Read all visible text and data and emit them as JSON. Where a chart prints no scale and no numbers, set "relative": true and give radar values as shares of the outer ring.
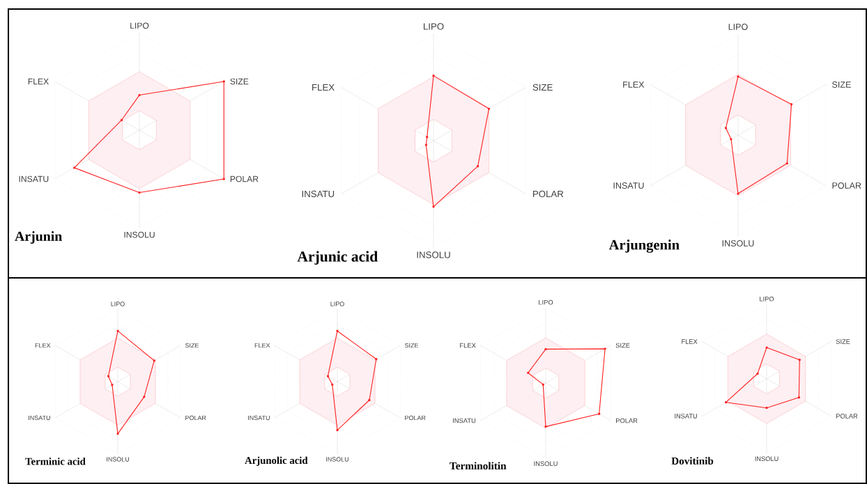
{
  "chart_data": [
    {
      "type": "radar",
      "title": "Arjunin",
      "categories": [
        "LIPO",
        "SIZE",
        "POLAR",
        "INSOLU",
        "INSATU",
        "FLEX"
      ],
      "relative": true,
      "grid": true,
      "series": [
        {
          "type": "area",
          "color": "#fdeff2",
          "values": [
            0.6,
            0.6,
            0.6,
            0.6,
            0.6,
            0.6
          ]
        },
        {
          "color": "#ff2020",
          "marker": "circle",
          "values": [
            0.36,
            1.0,
            1.0,
            0.64,
            0.77,
            0.21
          ]
        }
      ]
    },
    {
      "type": "radar",
      "title": "Arjunic acid",
      "categories": [
        "LIPO",
        "SIZE",
        "POLAR",
        "INSOLU",
        "INSATU",
        "FLEX"
      ],
      "relative": true,
      "grid": true,
      "series": [
        {
          "type": "area",
          "color": "#fdeff2",
          "values": [
            0.6,
            0.6,
            0.6,
            0.6,
            0.6,
            0.6
          ]
        },
        {
          "color": "#ff2020",
          "marker": "circle",
          "values": [
            0.61,
            0.6,
            0.48,
            0.62,
            0.08,
            0.07
          ]
        }
      ]
    },
    {
      "type": "radar",
      "title": "Arjungenin",
      "categories": [
        "LIPO",
        "SIZE",
        "POLAR",
        "INSOLU",
        "INSATU",
        "FLEX"
      ],
      "relative": true,
      "grid": true,
      "series": [
        {
          "type": "area",
          "color": "#fdeff2",
          "values": [
            0.6,
            0.6,
            0.6,
            0.6,
            0.6,
            0.6
          ]
        },
        {
          "color": "#ff2020",
          "marker": "circle",
          "values": [
            0.58,
            0.61,
            0.56,
            0.58,
            0.08,
            0.14
          ]
        }
      ]
    },
    {
      "type": "radar",
      "title": "Terminic acid",
      "categories": [
        "LIPO",
        "SIZE",
        "POLAR",
        "INSOLU",
        "INSATU",
        "FLEX"
      ],
      "relative": true,
      "grid": true,
      "series": [
        {
          "type": "area",
          "color": "#fdeff2",
          "values": [
            0.6,
            0.6,
            0.6,
            0.6,
            0.6,
            0.6
          ]
        },
        {
          "color": "#ff2020",
          "marker": "circle",
          "values": [
            0.7,
            0.58,
            0.42,
            0.72,
            0.09,
            0.15
          ]
        }
      ]
    },
    {
      "type": "radar",
      "title": "Arjunolic acid",
      "categories": [
        "LIPO",
        "SIZE",
        "POLAR",
        "INSOLU",
        "INSATU",
        "FLEX"
      ],
      "relative": true,
      "grid": true,
      "series": [
        {
          "type": "area",
          "color": "#fdeff2",
          "values": [
            0.6,
            0.6,
            0.6,
            0.6,
            0.6,
            0.6
          ]
        },
        {
          "color": "#ff2020",
          "marker": "circle",
          "values": [
            0.7,
            0.62,
            0.51,
            0.67,
            0.08,
            0.15
          ]
        }
      ]
    },
    {
      "type": "radar",
      "title": "Terminolitin",
      "categories": [
        "LIPO",
        "SIZE",
        "POLAR",
        "INSOLU",
        "INSATU",
        "FLEX"
      ],
      "relative": true,
      "grid": true,
      "series": [
        {
          "type": "area",
          "color": "#fdeff2",
          "values": [
            0.6,
            0.6,
            0.6,
            0.6,
            0.6,
            0.6
          ]
        },
        {
          "color": "#ff2020",
          "marker": "circle",
          "values": [
            0.45,
            0.91,
            0.82,
            0.58,
            0.04,
            0.27
          ]
        }
      ]
    },
    {
      "type": "radar",
      "title": "Dovitinib",
      "categories": [
        "LIPO",
        "SIZE",
        "POLAR",
        "INSOLU",
        "INSATU",
        "FLEX"
      ],
      "relative": true,
      "grid": true,
      "series": [
        {
          "type": "area",
          "color": "#fdeff2",
          "values": [
            0.6,
            0.6,
            0.6,
            0.6,
            0.6,
            0.6
          ]
        },
        {
          "color": "#ff2020",
          "marker": "circle",
          "values": [
            0.42,
            0.51,
            0.5,
            0.39,
            0.63,
            0.14
          ]
        }
      ]
    }
  ]
}
